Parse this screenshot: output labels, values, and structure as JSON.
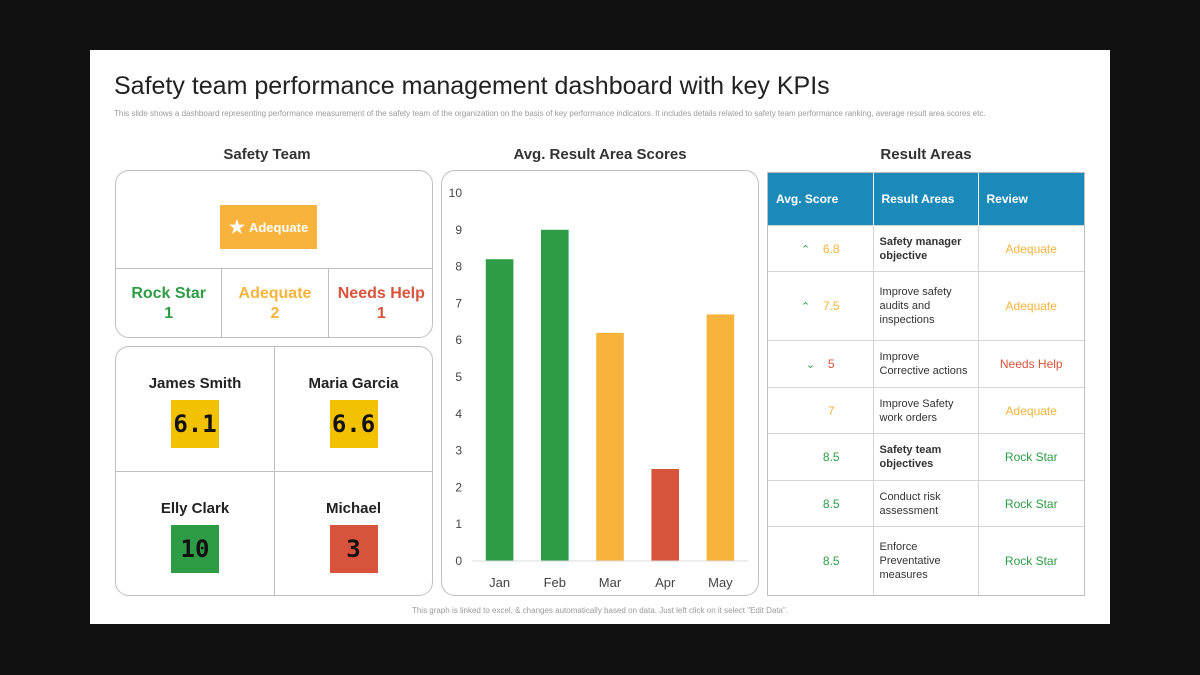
{
  "header": {
    "title": "Safety team performance management dashboard with key KPIs",
    "subtitle": "This slide shows a dashboard representing performance measurement of the safety team of the organization on the basis of key performance indicators. It includes details related to safety team performance ranking, average result area scores etc."
  },
  "colors": {
    "green": "#2e9b45",
    "yellow": "#f7b33b",
    "red": "#d7533b",
    "gold": "#f2c200",
    "blue": "#1b8ab8"
  },
  "safety_team": {
    "heading": "Safety Team",
    "overall_badge": {
      "icon": "star-icon",
      "label": "Adequate"
    },
    "ratings": [
      {
        "label": "Rock Star",
        "count": "1",
        "color": "#2e9b45"
      },
      {
        "label": "Adequate",
        "count": "2",
        "color": "#f7b33b"
      },
      {
        "label": "Needs Help",
        "count": "1",
        "color": "#d7533b"
      }
    ],
    "members": [
      {
        "name": "James Smith",
        "score": "6.1",
        "color": "#f2c200"
      },
      {
        "name": "Maria Garcia",
        "score": "6.6",
        "color": "#f2c200"
      },
      {
        "name": "Elly Clark",
        "score": "10",
        "color": "#2e9b45"
      },
      {
        "name": "Michael",
        "score": "3",
        "color": "#d7533b"
      }
    ]
  },
  "chart_section": {
    "heading": "Avg. Result Area Scores"
  },
  "chart_data": {
    "type": "bar",
    "categories": [
      "Jan",
      "Feb",
      "Mar",
      "Apr",
      "May"
    ],
    "values": [
      8.2,
      9.0,
      6.2,
      2.5,
      6.7
    ],
    "bar_colors": [
      "#2e9b45",
      "#2e9b45",
      "#f7b33b",
      "#d7533b",
      "#f7b33b"
    ],
    "ylim": [
      0,
      10
    ],
    "yticks": [
      0,
      1,
      2,
      3,
      4,
      5,
      6,
      7,
      8,
      9,
      10
    ],
    "title": "",
    "xlabel": "",
    "ylabel": "",
    "grid": false
  },
  "result_areas": {
    "heading": "Result Areas",
    "columns": [
      "Avg.  Score",
      "Result  Areas",
      "Review"
    ],
    "rows": [
      {
        "trend": "up",
        "score": "6.8",
        "area": "Safety manager objective",
        "bold": true,
        "review": "Adequate",
        "color": "#f7b33b"
      },
      {
        "trend": "up",
        "score": "7.5",
        "area": "Improve safety audits and inspections",
        "bold": false,
        "review": "Adequate",
        "color": "#f7b33b"
      },
      {
        "trend": "down",
        "score": "5",
        "area": "Improve Corrective actions",
        "bold": false,
        "review": "Needs Help",
        "color": "#d7533b"
      },
      {
        "trend": "",
        "score": "7",
        "area": "Improve Safety work orders",
        "bold": false,
        "review": "Adequate",
        "color": "#f7b33b"
      },
      {
        "trend": "",
        "score": "8.5",
        "area": "Safety team objectives",
        "bold": true,
        "review": "Rock Star",
        "color": "#2e9b45"
      },
      {
        "trend": "",
        "score": "8.5",
        "area": "Conduct risk assessment",
        "bold": false,
        "review": "Rock Star",
        "color": "#2e9b45"
      },
      {
        "trend": "",
        "score": "8.5",
        "area": "Enforce Preventative measures",
        "bold": false,
        "review": "Rock Star",
        "color": "#2e9b45"
      }
    ]
  },
  "footer": {
    "note": "This graph is linked to excel, & changes automatically based on data. Just left click on it select \"Edit Data\"."
  }
}
